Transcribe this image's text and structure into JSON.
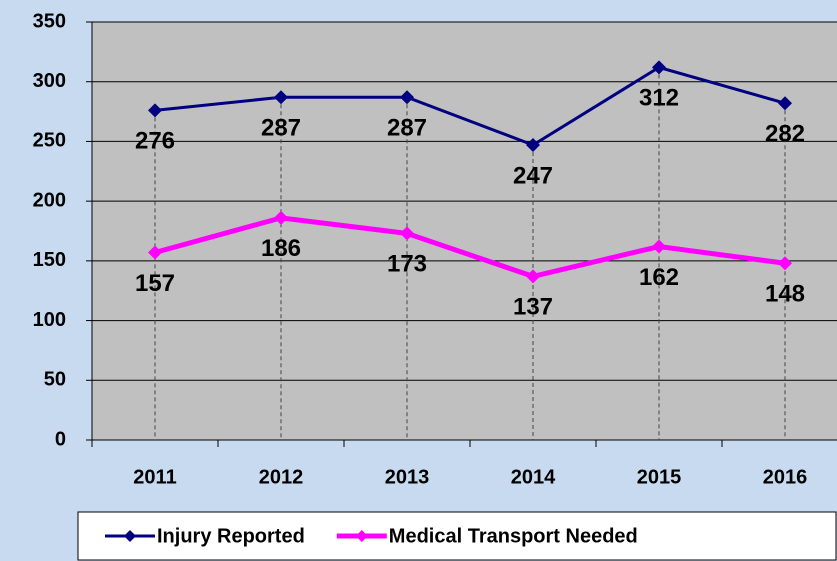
{
  "chart_data": {
    "type": "line",
    "categories": [
      "2011",
      "2012",
      "2013",
      "2014",
      "2015",
      "2016"
    ],
    "series": [
      {
        "name": "Injury Reported",
        "color": "#000080",
        "values": [
          276,
          287,
          287,
          247,
          312,
          282
        ]
      },
      {
        "name": "Medical Transport Needed",
        "color": "#ff00ff",
        "values": [
          157,
          186,
          173,
          137,
          162,
          148
        ]
      }
    ],
    "ylim": [
      0,
      350
    ],
    "yticks": [
      0,
      50,
      100,
      150,
      200,
      250,
      300,
      350
    ],
    "grid": true,
    "legend": "bottom"
  }
}
